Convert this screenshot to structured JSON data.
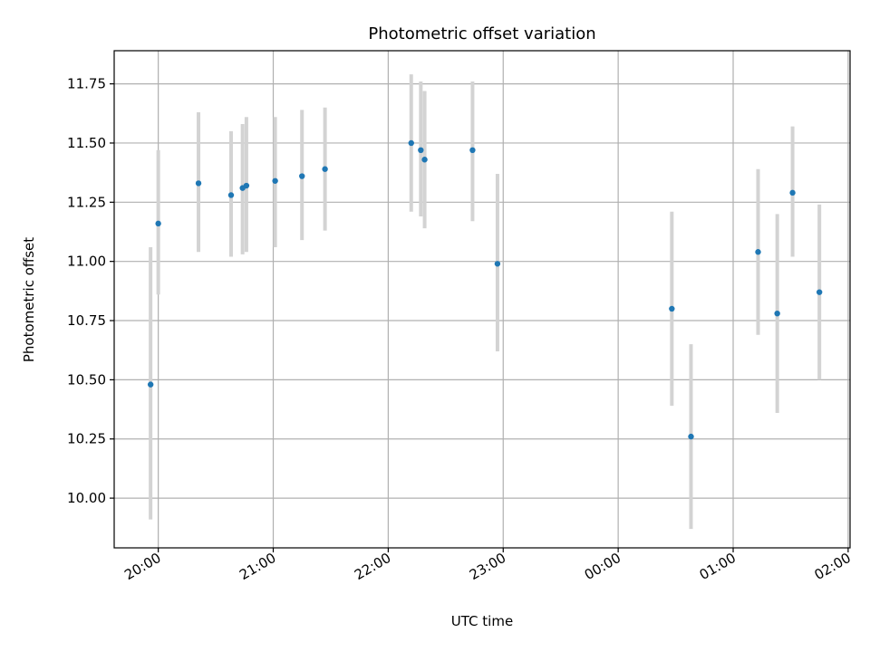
{
  "chart_data": {
    "type": "scatter",
    "title": "Photometric offset variation",
    "xlabel": "UTC time",
    "ylabel": "Photometric offset",
    "x_axis": {
      "type": "time",
      "ticks": [
        "20:00",
        "21:00",
        "22:00",
        "23:00",
        "00:00",
        "01:00",
        "02:00"
      ],
      "xlim": [
        "19:37",
        "02:01"
      ]
    },
    "y_axis": {
      "ticks": [
        "10.00",
        "10.25",
        "10.50",
        "10.75",
        "11.00",
        "11.25",
        "11.50",
        "11.75"
      ],
      "ylim": [
        9.79,
        11.89
      ]
    },
    "grid": true,
    "marker_color": "#1f77b4",
    "errorbar_color": "#d3d3d3",
    "points": [
      {
        "x": "19:56",
        "y": 10.48,
        "yerr_low": 9.91,
        "yerr_high": 11.06
      },
      {
        "x": "20:00",
        "y": 11.16,
        "yerr_low": 10.86,
        "yerr_high": 11.47
      },
      {
        "x": "20:21",
        "y": 11.33,
        "yerr_low": 11.04,
        "yerr_high": 11.63
      },
      {
        "x": "20:38",
        "y": 11.28,
        "yerr_low": 11.02,
        "yerr_high": 11.55
      },
      {
        "x": "20:44",
        "y": 11.31,
        "yerr_low": 11.03,
        "yerr_high": 11.58
      },
      {
        "x": "20:46",
        "y": 11.32,
        "yerr_low": 11.04,
        "yerr_high": 11.61
      },
      {
        "x": "21:01",
        "y": 11.34,
        "yerr_low": 11.06,
        "yerr_high": 11.61
      },
      {
        "x": "21:15",
        "y": 11.36,
        "yerr_low": 11.09,
        "yerr_high": 11.64
      },
      {
        "x": "21:27",
        "y": 11.39,
        "yerr_low": 11.13,
        "yerr_high": 11.65
      },
      {
        "x": "22:12",
        "y": 11.5,
        "yerr_low": 11.21,
        "yerr_high": 11.79
      },
      {
        "x": "22:17",
        "y": 11.47,
        "yerr_low": 11.19,
        "yerr_high": 11.76
      },
      {
        "x": "22:19",
        "y": 11.43,
        "yerr_low": 11.14,
        "yerr_high": 11.72
      },
      {
        "x": "22:44",
        "y": 11.47,
        "yerr_low": 11.17,
        "yerr_high": 11.76
      },
      {
        "x": "22:57",
        "y": 10.99,
        "yerr_low": 10.62,
        "yerr_high": 11.37
      },
      {
        "x": "00:28",
        "y": 10.8,
        "yerr_low": 10.39,
        "yerr_high": 11.21
      },
      {
        "x": "00:38",
        "y": 10.26,
        "yerr_low": 9.87,
        "yerr_high": 10.65
      },
      {
        "x": "01:13",
        "y": 11.04,
        "yerr_low": 10.69,
        "yerr_high": 11.39
      },
      {
        "x": "01:23",
        "y": 10.78,
        "yerr_low": 10.36,
        "yerr_high": 11.2
      },
      {
        "x": "01:31",
        "y": 11.29,
        "yerr_low": 11.02,
        "yerr_high": 11.57
      },
      {
        "x": "01:45",
        "y": 10.87,
        "yerr_low": 10.5,
        "yerr_high": 11.24
      }
    ]
  }
}
